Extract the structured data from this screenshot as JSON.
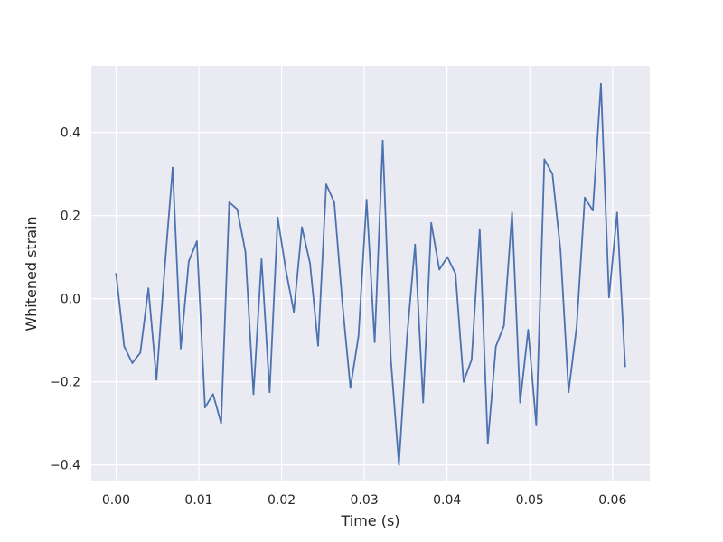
{
  "chart_data": {
    "type": "line",
    "title": "",
    "xlabel": "Time (s)",
    "ylabel": "Whitened strain",
    "xlim": [
      -0.003,
      0.0645
    ],
    "ylim": [
      -0.44,
      0.56
    ],
    "grid": true,
    "background_color": "#eaeaf2",
    "grid_color": "#ffffff",
    "line_color": "#4c72b0",
    "x_ticks": [
      0.0,
      0.01,
      0.02,
      0.03,
      0.04,
      0.05,
      0.06
    ],
    "x_tick_labels": [
      "0.00",
      "0.01",
      "0.02",
      "0.03",
      "0.04",
      "0.05",
      "0.06"
    ],
    "y_ticks": [
      -0.4,
      -0.2,
      0.0,
      0.2,
      0.4
    ],
    "y_tick_labels": [
      "−0.4",
      "−0.2",
      "0.0",
      "0.2",
      "0.4"
    ],
    "series": [
      {
        "x": [
          0.0,
          0.000977,
          0.001953,
          0.00293,
          0.003906,
          0.004883,
          0.005859,
          0.006836,
          0.007813,
          0.008789,
          0.009766,
          0.010742,
          0.011719,
          0.012695,
          0.013672,
          0.014648,
          0.015625,
          0.016602,
          0.017578,
          0.018555,
          0.019531,
          0.020508,
          0.021484,
          0.022461,
          0.023438,
          0.024414,
          0.025391,
          0.026367,
          0.027344,
          0.02832,
          0.029297,
          0.030273,
          0.03125,
          0.032227,
          0.033203,
          0.03418,
          0.035156,
          0.036133,
          0.037109,
          0.038086,
          0.039063,
          0.040039,
          0.041016,
          0.041992,
          0.042969,
          0.043945,
          0.044922,
          0.045898,
          0.046875,
          0.047852,
          0.048828,
          0.049805,
          0.050781,
          0.051758,
          0.052734,
          0.053711,
          0.054688,
          0.055664,
          0.056641,
          0.057617,
          0.058594,
          0.05957,
          0.060547,
          0.061523
        ],
        "y": [
          0.06,
          -0.115,
          -0.155,
          -0.13,
          0.025,
          -0.195,
          0.07,
          0.315,
          -0.12,
          0.09,
          0.138,
          -0.262,
          -0.23,
          -0.3,
          0.232,
          0.215,
          0.113,
          -0.23,
          0.095,
          -0.225,
          0.195,
          0.07,
          -0.032,
          0.172,
          0.085,
          -0.113,
          0.275,
          0.232,
          -0.01,
          -0.215,
          -0.09,
          0.238,
          -0.105,
          0.38,
          -0.145,
          -0.4,
          -0.093,
          0.13,
          -0.25,
          0.182,
          0.07,
          0.1,
          0.06,
          -0.2,
          -0.147,
          0.167,
          -0.348,
          -0.115,
          -0.065,
          0.207,
          -0.25,
          -0.075,
          -0.305,
          0.335,
          0.3,
          0.115,
          -0.225,
          -0.067,
          0.243,
          0.212,
          0.517,
          0.003,
          0.207,
          -0.163
        ]
      }
    ]
  }
}
